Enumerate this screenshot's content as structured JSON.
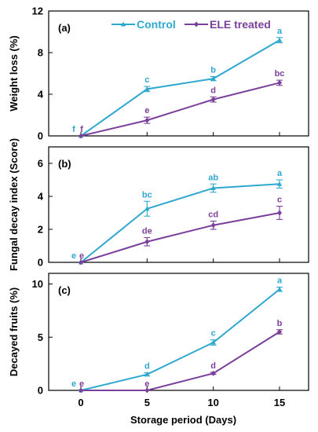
{
  "chart_data": [
    {
      "type": "line",
      "panel_label": "(a)",
      "ylabel": "Weight loss (%)",
      "xlabel": "",
      "x": [
        0,
        5,
        10,
        15
      ],
      "ylim": [
        0,
        12
      ],
      "yticks": [
        0,
        4,
        8,
        12
      ],
      "legend": "top",
      "series": [
        {
          "name": "Control",
          "color": "#2fa8cf",
          "marker": "triangle",
          "values": [
            0,
            4.5,
            5.5,
            9.2
          ],
          "errors": [
            0,
            0.25,
            0.2,
            0.25
          ],
          "labels": [
            "f",
            "c",
            "b",
            "a"
          ]
        },
        {
          "name": "ELE treated",
          "color": "#7a3f9a",
          "marker": "diamond",
          "values": [
            0,
            1.5,
            3.5,
            5.1
          ],
          "errors": [
            0,
            0.3,
            0.25,
            0.25
          ],
          "labels": [
            "f",
            "e",
            "d",
            "bc"
          ]
        }
      ]
    },
    {
      "type": "line",
      "panel_label": "(b)",
      "ylabel": "Fungal decay index (Score)",
      "xlabel": "",
      "x": [
        0,
        5,
        10,
        15
      ],
      "ylim": [
        0,
        7
      ],
      "yticks": [
        0,
        2,
        4,
        6
      ],
      "series": [
        {
          "name": "Control",
          "color": "#2fa8cf",
          "marker": "triangle",
          "values": [
            0,
            3.25,
            4.5,
            4.75
          ],
          "errors": [
            0,
            0.45,
            0.25,
            0.25
          ],
          "labels": [
            "e",
            "bc",
            "ab",
            "a"
          ]
        },
        {
          "name": "ELE treated",
          "color": "#7a3f9a",
          "marker": "diamond",
          "values": [
            0,
            1.25,
            2.25,
            3.0
          ],
          "errors": [
            0,
            0.25,
            0.25,
            0.4
          ],
          "labels": [
            "e",
            "de",
            "cd",
            "c"
          ]
        }
      ]
    },
    {
      "type": "line",
      "panel_label": "(c)",
      "ylabel": "Decayed fruits (%)",
      "xlabel": "Storage period (Days)",
      "x": [
        0,
        5,
        10,
        15
      ],
      "xticks": [
        "0",
        "5",
        "10",
        "15"
      ],
      "ylim": [
        0,
        11
      ],
      "yticks": [
        0,
        5,
        10
      ],
      "series": [
        {
          "name": "Control",
          "color": "#2fa8cf",
          "marker": "triangle",
          "values": [
            0,
            1.5,
            4.5,
            9.5
          ],
          "errors": [
            0,
            0.15,
            0.25,
            0.2
          ],
          "labels": [
            "e",
            "d",
            "c",
            "a"
          ]
        },
        {
          "name": "ELE treated",
          "color": "#7a3f9a",
          "marker": "diamond",
          "values": [
            0,
            0,
            1.6,
            5.5
          ],
          "errors": [
            0,
            0,
            0.1,
            0.2
          ],
          "labels": [
            "e",
            "e",
            "d",
            "b"
          ]
        }
      ]
    }
  ]
}
